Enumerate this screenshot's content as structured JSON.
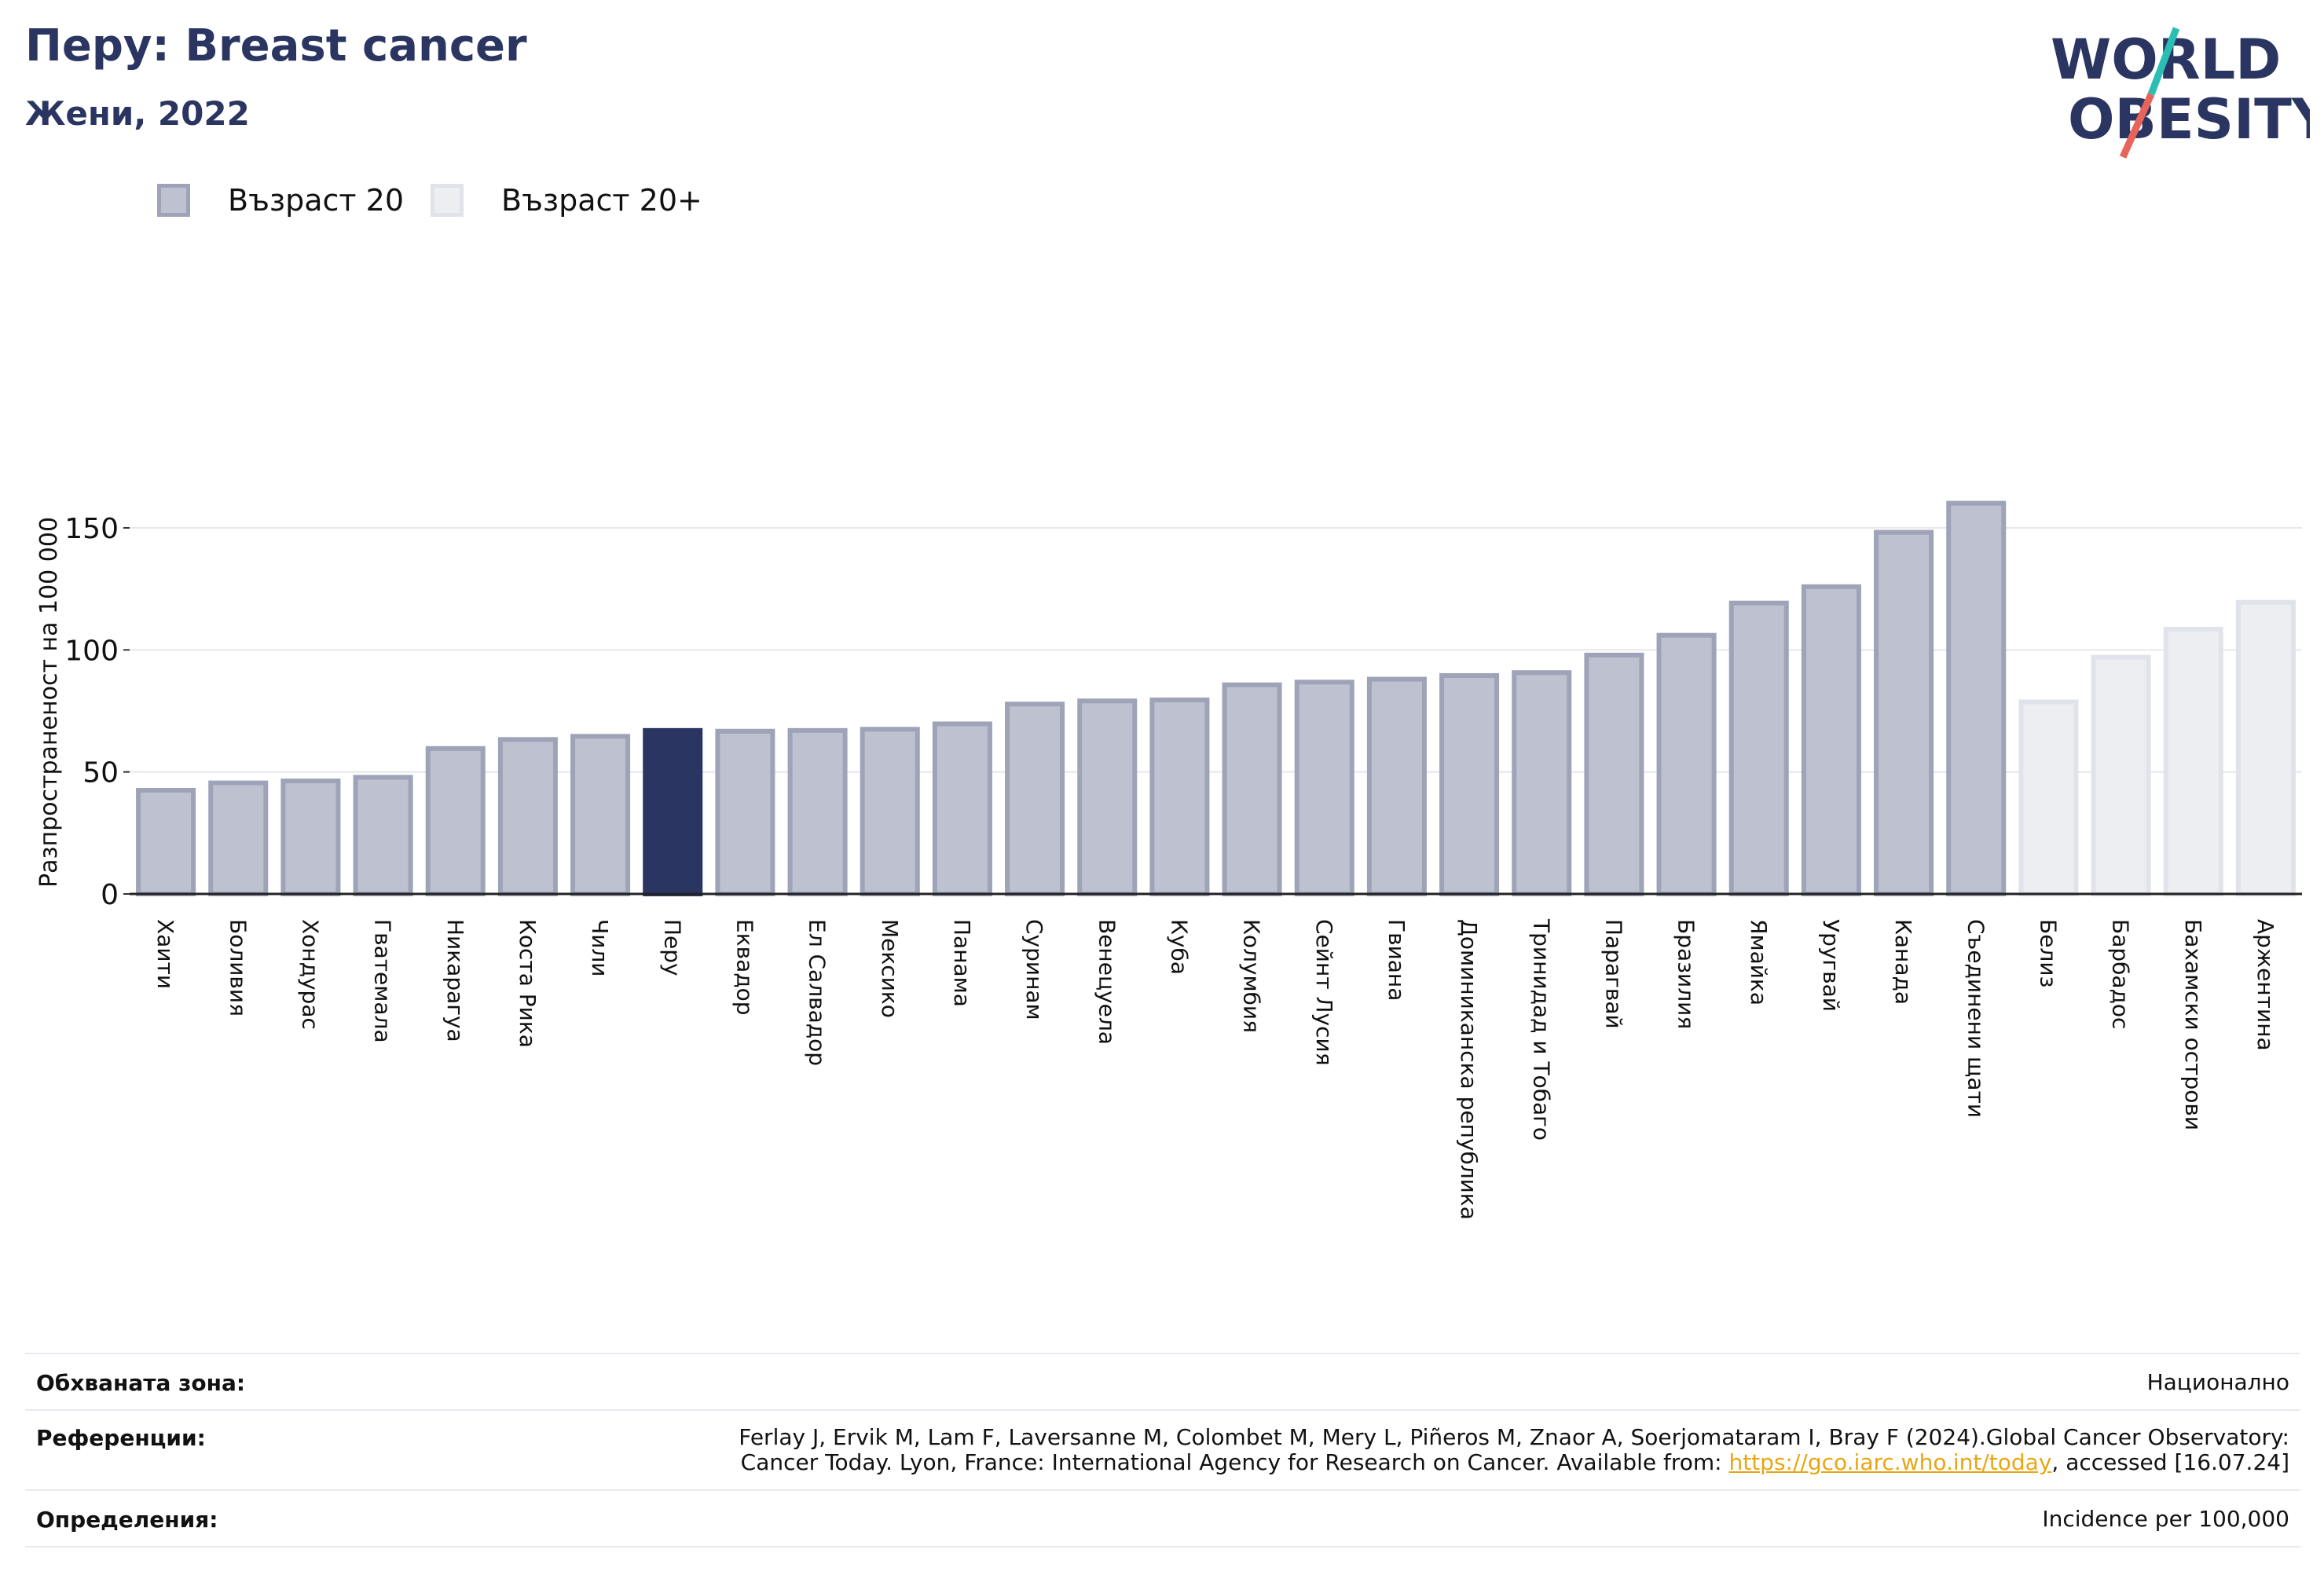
{
  "header": {
    "title": "Перу: Breast cancer",
    "subtitle": "Жени, 2022"
  },
  "logo": {
    "line1": "WORLD",
    "line2": "OBESITY",
    "accent_teal": "#2bbfb3",
    "accent_red": "#e8645a",
    "text_color": "#2b3561"
  },
  "legend": [
    {
      "label": "Възраст 20",
      "fill": "#bec1cf",
      "stroke": "#9ea3b8"
    },
    {
      "label": "Възраст 20+",
      "fill": "#eceef2",
      "stroke": "#e1e3ea"
    }
  ],
  "chart_data": {
    "type": "bar",
    "ylabel": "Разпространеност  на 100 000",
    "ylim": [
      0,
      170
    ],
    "yticks": [
      0,
      50,
      100,
      150
    ],
    "grid": true,
    "highlight_color": "#2b3561",
    "categories": [
      "Хаити",
      "Боливия",
      "Хондурас",
      "Гватемала",
      "Никарагуа",
      "Коста Рика",
      "Чили",
      "Перу",
      "Еквадор",
      "Ел Салвадор",
      "Мексико",
      "Панама",
      "Суринам",
      "Венецуела",
      "Куба",
      "Колумбия",
      "Сейнт Лусия",
      "Гвиана",
      "Доминиканска република",
      "Тринидад и Тобаго",
      "Парагвай",
      "Бразилия",
      "Ямайка",
      "Уругвай",
      "Канада",
      "Съединени щати",
      "Белиз",
      "Барбадос",
      "Бахамски острови",
      "Аржентина"
    ],
    "values": [
      42.5,
      45.5,
      46.3,
      47.8,
      59.6,
      63.3,
      64.6,
      67.0,
      66.7,
      67.0,
      67.5,
      69.7,
      77.8,
      79.1,
      79.5,
      85.7,
      86.8,
      88.0,
      89.5,
      90.7,
      97.9,
      106.0,
      119.2,
      125.9,
      148.2,
      160.1,
      78.7,
      97.0,
      108.5,
      119.5
    ],
    "groups": [
      "Възраст 20",
      "Възраст 20",
      "Възраст 20",
      "Възраст 20",
      "Възраст 20",
      "Възраст 20",
      "Възраст 20",
      "Възраст 20",
      "Възраст 20",
      "Възраст 20",
      "Възраст 20",
      "Възраст 20",
      "Възраст 20",
      "Възраст 20",
      "Възраст 20",
      "Възраст 20",
      "Възраст 20",
      "Възраст 20",
      "Възраст 20",
      "Възраст 20",
      "Възраст 20",
      "Възраст 20",
      "Възраст 20",
      "Възраст 20",
      "Възраст 20",
      "Възраст 20",
      "Възраст 20+",
      "Възраст 20+",
      "Възраст 20+",
      "Възраст 20+"
    ],
    "highlight": "Перу"
  },
  "footer": {
    "coverage_label": "Обхваната зона:",
    "coverage_value": "Национално",
    "references_label": "Референции:",
    "references_line1": "Ferlay J, Ervik M, Lam F, Laversanne M, Colombet M, Mery L, Piñeros M, Znaor A, Soerjomataram I, Bray F (2024).Global Cancer Observatory:",
    "references_line2_pre": "Cancer Today. Lyon, France: International Agency for Research on Cancer. Available from: ",
    "references_link": "https://gco.iarc.who.int/today",
    "references_line2_post": ", accessed [16.07.24]",
    "definitions_label": "Определения:",
    "definitions_value": "Incidence per 100,000"
  }
}
